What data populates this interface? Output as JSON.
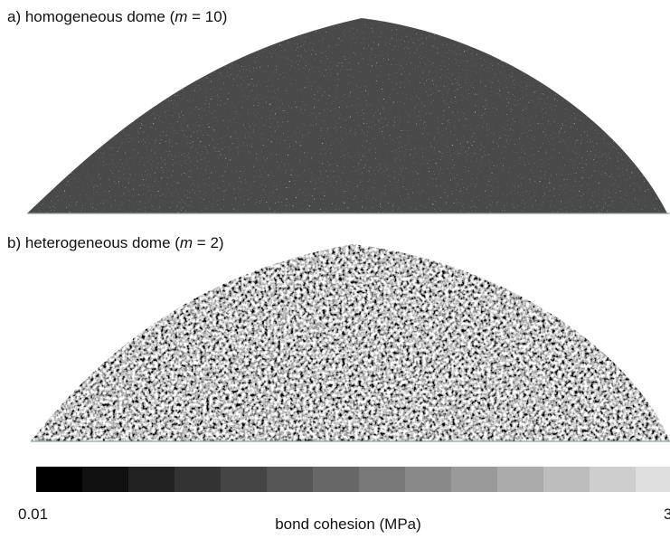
{
  "panels": [
    {
      "label": "a) homogeneous dome (",
      "symbol": "m",
      "relation": " = 10)"
    },
    {
      "label": "b) heterogeneous dome (",
      "symbol": "m",
      "relation": " = 2)"
    }
  ],
  "colorbar": {
    "min_label": "0.01",
    "max_label": "3",
    "title": "bond cohesion (MPa)"
  }
}
